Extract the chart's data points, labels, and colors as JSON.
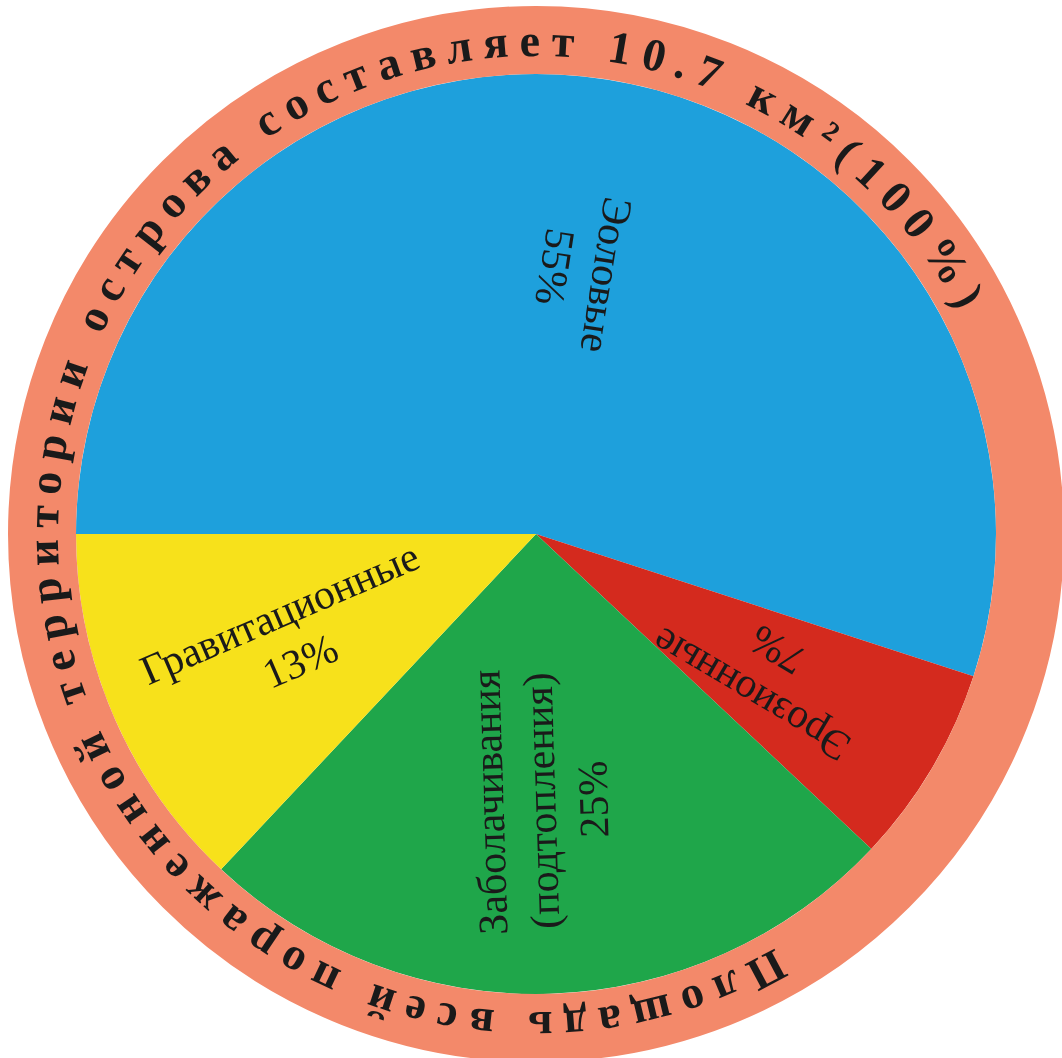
{
  "chart_data": {
    "type": "pie",
    "title": "Площадь всей пораженной территории острова составляет 10.7 км²(100%)",
    "categories": [
      "Эоловые",
      "Эрозионные",
      "Заболачивания (подтопления)",
      "Гравитационные"
    ],
    "values": [
      55,
      7,
      25,
      13
    ],
    "colors": [
      "#1ea0dc",
      "#d42a1e",
      "#1fa64a",
      "#f7e11b"
    ],
    "value_labels": [
      "55%",
      "7%",
      "25%",
      "13%"
    ],
    "legend": false
  }
}
